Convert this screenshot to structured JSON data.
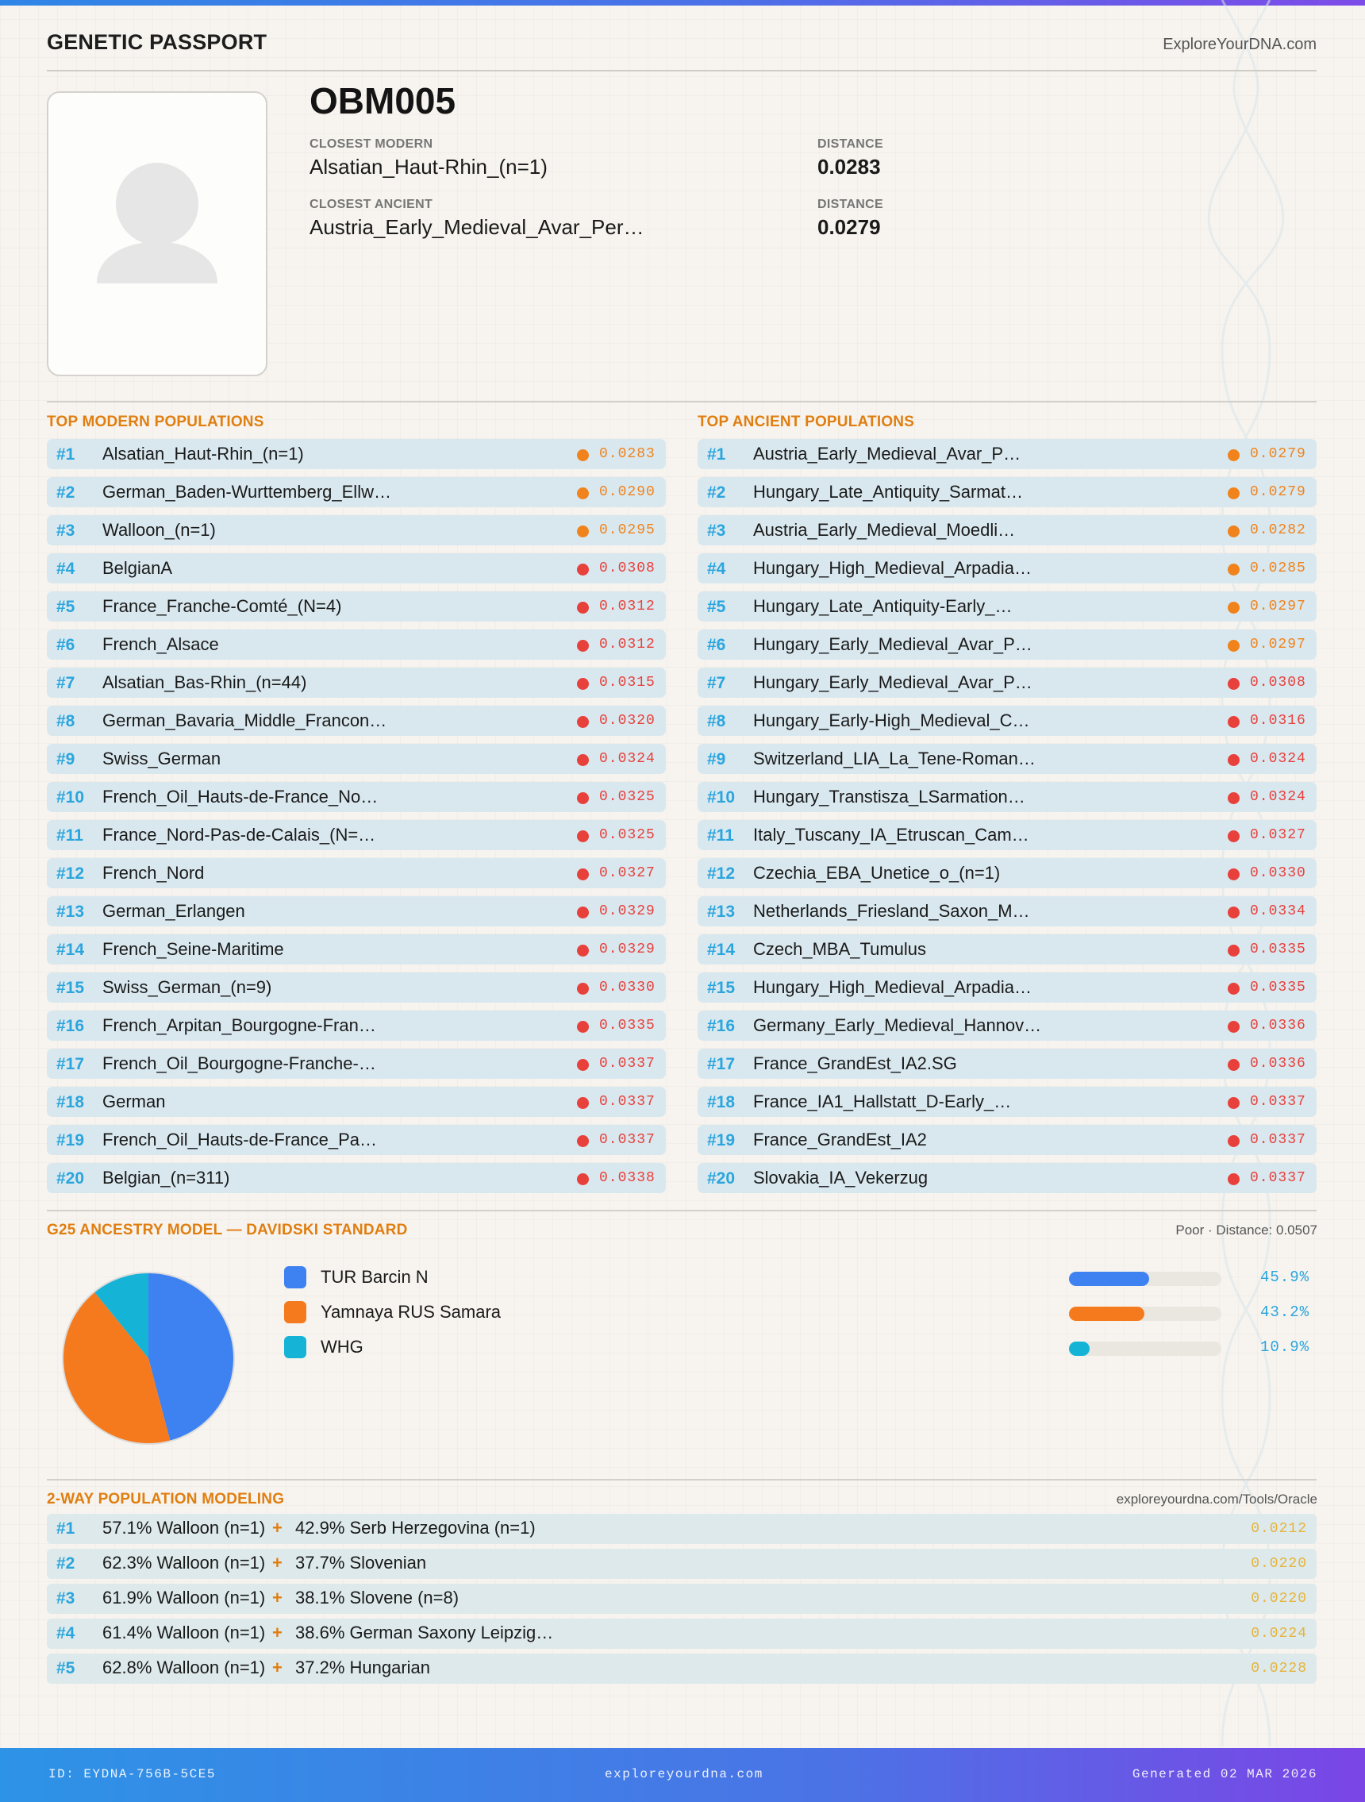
{
  "header": {
    "title": "GENETIC PASSPORT",
    "site": "ExploreYourDNA.com"
  },
  "profile": {
    "photo_icon": "user-silhouette-icon",
    "sample_id": "OBM005",
    "closest_modern_label": "CLOSEST MODERN",
    "closest_modern": "Alsatian_Haut-Rhin_(n=1)",
    "closest_modern_distance_label": "DISTANCE",
    "closest_modern_distance": "0.0283",
    "closest_ancient_label": "CLOSEST ANCIENT",
    "closest_ancient": "Austria_Early_Medieval_Avar_Per…",
    "closest_ancient_distance_label": "DISTANCE",
    "closest_ancient_distance": "0.0279"
  },
  "colors": {
    "good": "#f0831c",
    "fair": "#e8403b",
    "rank": "#2aa5dd",
    "section": "#e07e10"
  },
  "modern": {
    "title": "TOP MODERN POPULATIONS",
    "items": [
      {
        "rank": "#1",
        "name": "Alsatian_Haut-Rhin_(n=1)",
        "dist": "0.0283",
        "level": "good"
      },
      {
        "rank": "#2",
        "name": "German_Baden-Wurttemberg_Ellw…",
        "dist": "0.0290",
        "level": "good"
      },
      {
        "rank": "#3",
        "name": "Walloon_(n=1)",
        "dist": "0.0295",
        "level": "good"
      },
      {
        "rank": "#4",
        "name": "BelgianA",
        "dist": "0.0308",
        "level": "fair"
      },
      {
        "rank": "#5",
        "name": "France_Franche-Comté_(N=4)",
        "dist": "0.0312",
        "level": "fair"
      },
      {
        "rank": "#6",
        "name": "French_Alsace",
        "dist": "0.0312",
        "level": "fair"
      },
      {
        "rank": "#7",
        "name": "Alsatian_Bas-Rhin_(n=44)",
        "dist": "0.0315",
        "level": "fair"
      },
      {
        "rank": "#8",
        "name": "German_Bavaria_Middle_Francon…",
        "dist": "0.0320",
        "level": "fair"
      },
      {
        "rank": "#9",
        "name": "Swiss_German",
        "dist": "0.0324",
        "level": "fair"
      },
      {
        "rank": "#10",
        "name": "French_Oil_Hauts-de-France_No…",
        "dist": "0.0325",
        "level": "fair"
      },
      {
        "rank": "#11",
        "name": "France_Nord-Pas-de-Calais_(N=…",
        "dist": "0.0325",
        "level": "fair"
      },
      {
        "rank": "#12",
        "name": "French_Nord",
        "dist": "0.0327",
        "level": "fair"
      },
      {
        "rank": "#13",
        "name": "German_Erlangen",
        "dist": "0.0329",
        "level": "fair"
      },
      {
        "rank": "#14",
        "name": "French_Seine-Maritime",
        "dist": "0.0329",
        "level": "fair"
      },
      {
        "rank": "#15",
        "name": "Swiss_German_(n=9)",
        "dist": "0.0330",
        "level": "fair"
      },
      {
        "rank": "#16",
        "name": "French_Arpitan_Bourgogne-Fran…",
        "dist": "0.0335",
        "level": "fair"
      },
      {
        "rank": "#17",
        "name": "French_Oil_Bourgogne-Franche-…",
        "dist": "0.0337",
        "level": "fair"
      },
      {
        "rank": "#18",
        "name": "German",
        "dist": "0.0337",
        "level": "fair"
      },
      {
        "rank": "#19",
        "name": "French_Oil_Hauts-de-France_Pa…",
        "dist": "0.0337",
        "level": "fair"
      },
      {
        "rank": "#20",
        "name": "Belgian_(n=311)",
        "dist": "0.0338",
        "level": "fair"
      }
    ]
  },
  "ancient": {
    "title": "TOP ANCIENT POPULATIONS",
    "items": [
      {
        "rank": "#1",
        "name": "Austria_Early_Medieval_Avar_P…",
        "dist": "0.0279",
        "level": "good"
      },
      {
        "rank": "#2",
        "name": "Hungary_Late_Antiquity_Sarmat…",
        "dist": "0.0279",
        "level": "good"
      },
      {
        "rank": "#3",
        "name": "Austria_Early_Medieval_Moedli…",
        "dist": "0.0282",
        "level": "good"
      },
      {
        "rank": "#4",
        "name": "Hungary_High_Medieval_Arpadia…",
        "dist": "0.0285",
        "level": "good"
      },
      {
        "rank": "#5",
        "name": "Hungary_Late_Antiquity-Early_…",
        "dist": "0.0297",
        "level": "good"
      },
      {
        "rank": "#6",
        "name": "Hungary_Early_Medieval_Avar_P…",
        "dist": "0.0297",
        "level": "good"
      },
      {
        "rank": "#7",
        "name": "Hungary_Early_Medieval_Avar_P…",
        "dist": "0.0308",
        "level": "fair"
      },
      {
        "rank": "#8",
        "name": "Hungary_Early-High_Medieval_C…",
        "dist": "0.0316",
        "level": "fair"
      },
      {
        "rank": "#9",
        "name": "Switzerland_LIA_La_Tene-Roman…",
        "dist": "0.0324",
        "level": "fair"
      },
      {
        "rank": "#10",
        "name": "Hungary_Transtisza_LSarmation…",
        "dist": "0.0324",
        "level": "fair"
      },
      {
        "rank": "#11",
        "name": "Italy_Tuscany_IA_Etruscan_Cam…",
        "dist": "0.0327",
        "level": "fair"
      },
      {
        "rank": "#12",
        "name": "Czechia_EBA_Unetice_o_(n=1)",
        "dist": "0.0330",
        "level": "fair"
      },
      {
        "rank": "#13",
        "name": "Netherlands_Friesland_Saxon_M…",
        "dist": "0.0334",
        "level": "fair"
      },
      {
        "rank": "#14",
        "name": "Czech_MBA_Tumulus",
        "dist": "0.0335",
        "level": "fair"
      },
      {
        "rank": "#15",
        "name": "Hungary_High_Medieval_Arpadia…",
        "dist": "0.0335",
        "level": "fair"
      },
      {
        "rank": "#16",
        "name": "Germany_Early_Medieval_Hannov…",
        "dist": "0.0336",
        "level": "fair"
      },
      {
        "rank": "#17",
        "name": "France_GrandEst_IA2.SG",
        "dist": "0.0336",
        "level": "fair"
      },
      {
        "rank": "#18",
        "name": "France_IA1_Hallstatt_D-Early_…",
        "dist": "0.0337",
        "level": "fair"
      },
      {
        "rank": "#19",
        "name": "France_GrandEst_IA2",
        "dist": "0.0337",
        "level": "fair"
      },
      {
        "rank": "#20",
        "name": "Slovakia_IA_Vekerzug",
        "dist": "0.0337",
        "level": "fair"
      }
    ]
  },
  "g25": {
    "title": "G25 ANCESTRY MODEL — DAVIDSKI STANDARD",
    "fit": "Poor · Distance: 0.0507"
  },
  "chart_data": {
    "type": "pie",
    "categories": [
      "TUR Barcin N",
      "Yamnaya RUS Samara",
      "WHG"
    ],
    "values": [
      45.9,
      43.2,
      10.9
    ],
    "labels": [
      "45.9%",
      "43.2%",
      "10.9%"
    ],
    "colors": [
      "#3d82f0",
      "#f57a1e",
      "#15b4d6"
    ],
    "legend": "right"
  },
  "modeling": {
    "title": "2-WAY POPULATION MODELING",
    "source": "exploreyourdna.com/Tools/Oracle",
    "items": [
      {
        "rank": "#1",
        "a": "57.1% Walloon (n=1)",
        "plus": "+",
        "b": "42.9% Serb Herzegovina (n=1)",
        "dist": "0.0212"
      },
      {
        "rank": "#2",
        "a": "62.3% Walloon (n=1)",
        "plus": "+",
        "b": "37.7% Slovenian",
        "dist": "0.0220"
      },
      {
        "rank": "#3",
        "a": "61.9% Walloon (n=1)",
        "plus": "+",
        "b": "38.1% Slovene (n=8)",
        "dist": "0.0220"
      },
      {
        "rank": "#4",
        "a": "61.4% Walloon (n=1)",
        "plus": "+",
        "b": "38.6% German Saxony Leipzig…",
        "dist": "0.0224"
      },
      {
        "rank": "#5",
        "a": "62.8% Walloon (n=1)",
        "plus": "+",
        "b": "37.2% Hungarian",
        "dist": "0.0228"
      }
    ]
  },
  "footer": {
    "id": "ID: EYDNA-756B-5CE5",
    "site": "exploreyourdna.com",
    "generated": "Generated 02 MAR 2026"
  }
}
